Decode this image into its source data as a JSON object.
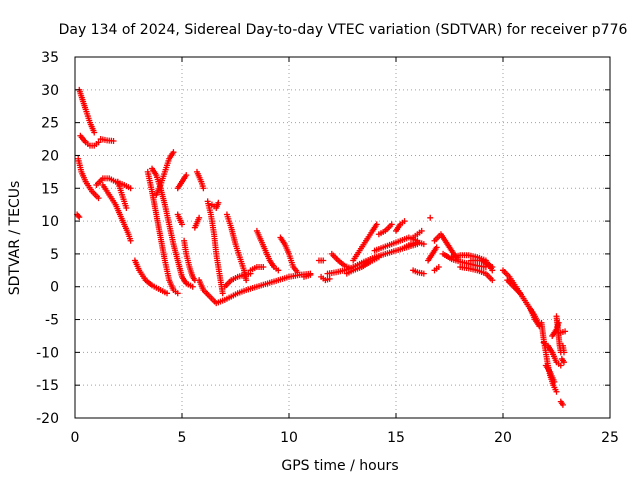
{
  "chart_data": {
    "type": "scatter",
    "title": "Day 134 of 2024, Sidereal Day-to-day VTEC variation (SDTVAR) for receiver p776",
    "xlabel": "GPS time / hours",
    "ylabel": "SDTVAR / TECUs",
    "xlim": [
      0,
      25
    ],
    "ylim": [
      -20,
      35
    ],
    "xticks": [
      0,
      5,
      10,
      15,
      20,
      25
    ],
    "yticks": [
      -20,
      -15,
      -10,
      -5,
      0,
      5,
      10,
      15,
      20,
      25,
      30,
      35
    ],
    "grid": true,
    "marker": "+",
    "color": "#ff0000",
    "series": [
      {
        "name": "SDTVAR",
        "segments": [
          [
            [
              0.1,
              11.0
            ],
            [
              0.2,
              10.6
            ]
          ],
          [
            [
              0.15,
              19.5
            ],
            [
              0.3,
              17.5
            ],
            [
              0.5,
              16.0
            ],
            [
              0.8,
              14.5
            ],
            [
              1.1,
              13.5
            ]
          ],
          [
            [
              0.2,
              30.0
            ],
            [
              0.35,
              28.5
            ],
            [
              0.5,
              27.0
            ],
            [
              0.7,
              25.0
            ],
            [
              0.9,
              23.5
            ]
          ],
          [
            [
              0.25,
              23.0
            ],
            [
              0.5,
              22.0
            ],
            [
              0.7,
              21.5
            ],
            [
              0.9,
              21.5
            ],
            [
              1.1,
              22.0
            ]
          ],
          [
            [
              1.2,
              22.5
            ],
            [
              1.5,
              22.3
            ],
            [
              1.8,
              22.2
            ]
          ],
          [
            [
              1.0,
              15.5
            ],
            [
              1.3,
              16.5
            ],
            [
              1.6,
              16.5
            ],
            [
              1.9,
              16.0
            ],
            [
              2.3,
              15.5
            ],
            [
              2.6,
              15.0
            ]
          ],
          [
            [
              1.3,
              15.5
            ],
            [
              1.6,
              14.0
            ],
            [
              1.9,
              12.5
            ],
            [
              2.1,
              11.0
            ],
            [
              2.3,
              9.5
            ],
            [
              2.5,
              8.0
            ],
            [
              2.6,
              7.0
            ]
          ],
          [
            [
              2.0,
              16.0
            ],
            [
              2.2,
              14.0
            ],
            [
              2.4,
              12.0
            ]
          ],
          [
            [
              2.8,
              4.0
            ],
            [
              3.0,
              2.5
            ],
            [
              3.3,
              1.0
            ],
            [
              3.6,
              0.2
            ],
            [
              4.0,
              -0.5
            ],
            [
              4.3,
              -1.0
            ]
          ],
          [
            [
              3.4,
              17.5
            ],
            [
              3.6,
              14.5
            ],
            [
              3.8,
              11.0
            ],
            [
              4.0,
              7.5
            ],
            [
              4.2,
              4.0
            ],
            [
              4.4,
              1.0
            ],
            [
              4.6,
              -0.5
            ],
            [
              4.8,
              -1.0
            ]
          ],
          [
            [
              3.6,
              18.0
            ],
            [
              3.8,
              17.0
            ],
            [
              4.0,
              15.0
            ],
            [
              4.2,
              12.5
            ],
            [
              4.4,
              9.5
            ],
            [
              4.6,
              6.5
            ],
            [
              4.8,
              4.0
            ],
            [
              5.0,
              1.5
            ],
            [
              5.2,
              0.5
            ],
            [
              5.5,
              0.0
            ]
          ],
          [
            [
              3.8,
              14.0
            ],
            [
              4.0,
              15.5
            ],
            [
              4.2,
              17.5
            ],
            [
              4.4,
              19.5
            ],
            [
              4.6,
              20.5
            ]
          ],
          [
            [
              4.8,
              15.0
            ],
            [
              5.0,
              16.0
            ],
            [
              5.2,
              17.0
            ]
          ],
          [
            [
              4.8,
              11.0
            ],
            [
              5.0,
              9.5
            ]
          ],
          [
            [
              5.1,
              7.0
            ],
            [
              5.2,
              5.0
            ],
            [
              5.35,
              3.0
            ],
            [
              5.5,
              1.5
            ],
            [
              5.6,
              1.0
            ]
          ],
          [
            [
              5.6,
              9.0
            ],
            [
              5.8,
              10.5
            ]
          ],
          [
            [
              5.7,
              17.5
            ],
            [
              5.9,
              16.0
            ],
            [
              6.0,
              15.0
            ]
          ],
          [
            [
              5.8,
              1.0
            ],
            [
              6.0,
              -0.5
            ],
            [
              6.3,
              -1.5
            ],
            [
              6.6,
              -2.5
            ],
            [
              7.0,
              -2.0
            ],
            [
              7.3,
              -1.5
            ],
            [
              7.6,
              -1.0
            ],
            [
              8.0,
              -0.5
            ],
            [
              8.5,
              0.0
            ],
            [
              9.0,
              0.5
            ],
            [
              9.5,
              1.0
            ],
            [
              10.0,
              1.5
            ],
            [
              10.5,
              1.8
            ],
            [
              11.0,
              2.0
            ]
          ],
          [
            [
              6.2,
              13.0
            ],
            [
              6.35,
              11.0
            ],
            [
              6.5,
              8.0
            ],
            [
              6.6,
              5.0
            ],
            [
              6.7,
              3.0
            ],
            [
              6.8,
              1.0
            ],
            [
              6.9,
              -1.0
            ]
          ],
          [
            [
              6.4,
              12.5
            ],
            [
              6.6,
              12.0
            ],
            [
              6.7,
              12.8
            ]
          ],
          [
            [
              7.0,
              0.0
            ],
            [
              7.3,
              1.0
            ],
            [
              7.6,
              1.5
            ],
            [
              7.9,
              1.8
            ],
            [
              8.2,
              2.0
            ]
          ],
          [
            [
              7.1,
              11.0
            ],
            [
              7.3,
              9.0
            ],
            [
              7.5,
              6.5
            ],
            [
              7.7,
              4.5
            ],
            [
              7.9,
              2.5
            ],
            [
              8.0,
              1.0
            ]
          ],
          [
            [
              8.2,
              2.5
            ],
            [
              8.5,
              3.0
            ],
            [
              8.8,
              3.0
            ]
          ],
          [
            [
              8.5,
              8.5
            ],
            [
              8.7,
              7.0
            ],
            [
              8.9,
              5.5
            ],
            [
              9.1,
              4.0
            ],
            [
              9.3,
              3.0
            ],
            [
              9.5,
              2.5
            ]
          ],
          [
            [
              9.6,
              7.5
            ],
            [
              9.8,
              6.5
            ],
            [
              10.0,
              5.0
            ],
            [
              10.2,
              3.0
            ],
            [
              10.4,
              2.2
            ]
          ],
          [
            [
              10.7,
              1.5
            ],
            [
              11.0,
              1.8
            ]
          ],
          [
            [
              11.4,
              4.0
            ],
            [
              11.6,
              4.0
            ]
          ],
          [
            [
              11.5,
              1.5
            ],
            [
              11.7,
              1.0
            ],
            [
              11.9,
              1.2
            ]
          ],
          [
            [
              11.8,
              2.0
            ],
            [
              12.2,
              2.2
            ],
            [
              12.6,
              2.5
            ],
            [
              13.0,
              3.0
            ],
            [
              13.5,
              3.8
            ],
            [
              14.0,
              4.5
            ],
            [
              14.5,
              5.0
            ],
            [
              15.0,
              5.5
            ],
            [
              15.5,
              6.0
            ],
            [
              16.0,
              6.5
            ]
          ],
          [
            [
              12.0,
              5.0
            ],
            [
              12.3,
              4.0
            ],
            [
              12.6,
              3.2
            ],
            [
              12.9,
              2.8
            ]
          ],
          [
            [
              12.7,
              2.0
            ],
            [
              13.0,
              2.5
            ],
            [
              13.4,
              3.0
            ],
            [
              13.8,
              3.8
            ],
            [
              14.2,
              4.5
            ]
          ],
          [
            [
              13.0,
              4.0
            ],
            [
              13.3,
              5.5
            ],
            [
              13.6,
              7.0
            ],
            [
              13.9,
              8.5
            ],
            [
              14.1,
              9.5
            ]
          ],
          [
            [
              14.0,
              5.5
            ],
            [
              14.4,
              6.0
            ],
            [
              14.8,
              6.5
            ],
            [
              15.2,
              7.0
            ],
            [
              15.6,
              7.5
            ],
            [
              16.0,
              7.0
            ]
          ],
          [
            [
              14.2,
              8.0
            ],
            [
              14.5,
              8.5
            ],
            [
              14.8,
              9.5
            ]
          ],
          [
            [
              15.0,
              8.5
            ],
            [
              15.2,
              9.5
            ],
            [
              15.4,
              10.0
            ]
          ],
          [
            [
              15.4,
              6.0
            ],
            [
              15.7,
              6.5
            ],
            [
              16.0,
              6.8
            ],
            [
              16.3,
              6.5
            ]
          ],
          [
            [
              15.8,
              7.5
            ],
            [
              16.0,
              8.0
            ],
            [
              16.2,
              8.5
            ]
          ],
          [
            [
              15.8,
              2.5
            ],
            [
              16.0,
              2.2
            ],
            [
              16.3,
              2.0
            ]
          ],
          [
            [
              16.5,
              4.0
            ],
            [
              16.7,
              5.0
            ],
            [
              16.9,
              6.0
            ]
          ],
          [
            [
              16.6,
              10.5
            ]
          ],
          [
            [
              16.8,
              2.5
            ],
            [
              17.0,
              3.0
            ]
          ],
          [
            [
              16.8,
              7.0
            ],
            [
              17.1,
              8.0
            ],
            [
              17.3,
              7.0
            ],
            [
              17.5,
              6.0
            ],
            [
              17.7,
              5.0
            ],
            [
              17.9,
              4.2
            ]
          ],
          [
            [
              17.2,
              5.0
            ],
            [
              17.6,
              4.2
            ],
            [
              18.0,
              3.8
            ],
            [
              18.4,
              3.5
            ],
            [
              18.8,
              3.2
            ],
            [
              19.2,
              3.0
            ]
          ],
          [
            [
              17.6,
              4.5
            ],
            [
              18.0,
              4.8
            ],
            [
              18.4,
              4.8
            ],
            [
              18.8,
              4.5
            ],
            [
              19.2,
              4.0
            ],
            [
              19.5,
              2.5
            ]
          ],
          [
            [
              18.0,
              3.0
            ],
            [
              18.4,
              2.8
            ],
            [
              18.8,
              2.5
            ],
            [
              19.2,
              2.0
            ],
            [
              19.5,
              1.0
            ]
          ],
          [
            [
              18.5,
              4.0
            ],
            [
              19.0,
              4.0
            ],
            [
              19.5,
              3.0
            ]
          ],
          [
            [
              20.0,
              2.5
            ],
            [
              20.3,
              1.5
            ],
            [
              20.6,
              0.0
            ],
            [
              20.9,
              -1.5
            ],
            [
              21.2,
              -3.0
            ],
            [
              21.5,
              -4.5
            ],
            [
              21.7,
              -6.0
            ]
          ],
          [
            [
              20.2,
              1.0
            ],
            [
              20.5,
              0.0
            ],
            [
              20.8,
              -1.0
            ]
          ],
          [
            [
              21.3,
              -3.5
            ],
            [
              21.5,
              -5.0
            ],
            [
              21.7,
              -6.0
            ]
          ],
          [
            [
              21.8,
              -5.5
            ],
            [
              21.9,
              -8.0
            ],
            [
              22.0,
              -10.0
            ],
            [
              22.1,
              -12.0
            ],
            [
              22.2,
              -13.5
            ],
            [
              22.35,
              -15.0
            ],
            [
              22.5,
              -16.0
            ]
          ],
          [
            [
              21.9,
              -8.5
            ],
            [
              22.1,
              -9.0
            ],
            [
              22.3,
              -10.0
            ],
            [
              22.5,
              -11.5
            ],
            [
              22.7,
              -12.0
            ]
          ],
          [
            [
              22.0,
              -12.0
            ],
            [
              22.2,
              -13.0
            ],
            [
              22.4,
              -14.5
            ]
          ],
          [
            [
              22.3,
              -7.5
            ],
            [
              22.5,
              -6.5
            ],
            [
              22.6,
              -5.5
            ]
          ],
          [
            [
              22.5,
              -4.5
            ],
            [
              22.55,
              -6.0
            ],
            [
              22.6,
              -7.5
            ],
            [
              22.65,
              -9.0
            ],
            [
              22.7,
              -10.0
            ]
          ],
          [
            [
              22.7,
              -7.0
            ],
            [
              22.9,
              -6.8
            ]
          ],
          [
            [
              22.8,
              -9.0
            ],
            [
              22.85,
              -10.0
            ]
          ],
          [
            [
              22.75,
              -11.0
            ],
            [
              22.85,
              -11.5
            ]
          ],
          [
            [
              22.7,
              -17.5
            ],
            [
              22.8,
              -18.0
            ]
          ]
        ]
      }
    ]
  }
}
